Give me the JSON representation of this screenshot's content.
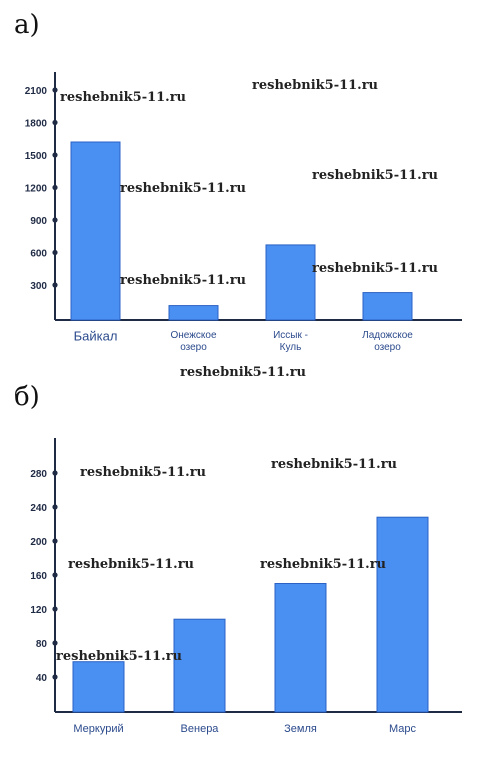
{
  "labels": {
    "a": "а)",
    "b": "б)"
  },
  "watermark": "reshebnik5-11.ru",
  "colors": {
    "bar": "#4a8ff2",
    "bar_stroke": "#2b62c4",
    "axis": "#1f2a44",
    "tick_text": "#1f2a44"
  },
  "chart_data": [
    {
      "type": "bar",
      "categories": [
        "Байкал",
        "Онежское озеро",
        "Иссык - Куль",
        "Ладожское озеро"
      ],
      "category_lines": [
        [
          "Байкал"
        ],
        [
          "Онежское",
          "озеро"
        ],
        [
          "Иссык -",
          "Куль"
        ],
        [
          "Ладожское",
          "озеро"
        ]
      ],
      "values": [
        1620,
        110,
        670,
        230
      ],
      "yticks": [
        300,
        600,
        900,
        1200,
        1500,
        1800,
        2100
      ],
      "ylim": [
        0,
        2300
      ],
      "title": "",
      "xlabel": "",
      "ylabel": ""
    },
    {
      "type": "bar",
      "categories": [
        "Меркурий",
        "Венера",
        "Земля",
        "Марс"
      ],
      "category_lines": [
        [
          "Меркурий"
        ],
        [
          "Венера"
        ],
        [
          "Земля"
        ],
        [
          "Марс"
        ]
      ],
      "values": [
        58,
        108,
        150,
        228
      ],
      "yticks": [
        40,
        80,
        120,
        160,
        200,
        240,
        280
      ],
      "ylim": [
        0,
        320
      ],
      "title": "",
      "xlabel": "",
      "ylabel": ""
    }
  ]
}
